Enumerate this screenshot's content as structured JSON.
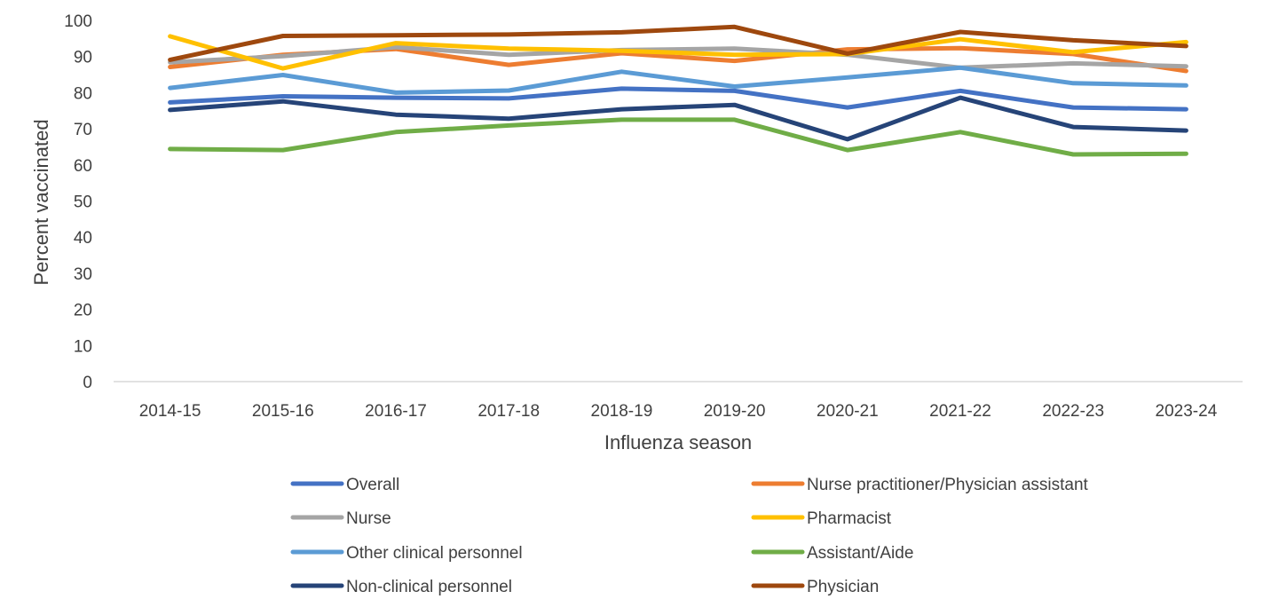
{
  "chart_data": {
    "type": "line",
    "title": "",
    "xlabel": "Influenza season",
    "ylabel": "Percent vaccinated",
    "ylim": [
      0,
      100
    ],
    "yticks": [
      0,
      10,
      20,
      30,
      40,
      50,
      60,
      70,
      80,
      90,
      100
    ],
    "categories": [
      "2014-15",
      "2015-16",
      "2016-17",
      "2017-18",
      "2018-19",
      "2019-20",
      "2020-21",
      "2021-22",
      "2022-23",
      "2023-24"
    ],
    "grid": false,
    "legend_position": "bottom",
    "series": [
      {
        "name": "Overall",
        "color": "#4472C4",
        "values": [
          77.3,
          79.0,
          78.6,
          78.4,
          81.1,
          80.5,
          75.9,
          80.5,
          75.9,
          75.4
        ]
      },
      {
        "name": "Nurse practitioner/Physician assistant",
        "color": "#ED7D31",
        "values": [
          87.1,
          90.5,
          92.1,
          87.7,
          90.9,
          88.8,
          92.0,
          92.3,
          90.7,
          86.0
        ]
      },
      {
        "name": "Nurse",
        "color": "#A5A5A5",
        "values": [
          88.4,
          90.1,
          92.6,
          90.5,
          91.8,
          92.2,
          90.5,
          86.9,
          88.1,
          87.3
        ]
      },
      {
        "name": "Pharmacist",
        "color": "#FFC000",
        "values": [
          95.6,
          86.7,
          93.7,
          92.2,
          91.6,
          90.5,
          90.7,
          94.8,
          91.2,
          94.0
        ]
      },
      {
        "name": "Other clinical personnel",
        "color": "#5B9BD5",
        "values": [
          81.3,
          84.9,
          80.0,
          80.6,
          85.8,
          81.7,
          84.2,
          86.9,
          82.6,
          82.0
        ]
      },
      {
        "name": "Assistant/Aide",
        "color": "#70AD47",
        "values": [
          64.4,
          64.1,
          69.1,
          70.9,
          72.5,
          72.5,
          64.1,
          69.1,
          62.9,
          63.1
        ]
      },
      {
        "name": "Non-clinical personnel",
        "color": "#264478",
        "values": [
          75.2,
          77.6,
          73.9,
          72.8,
          75.4,
          76.6,
          67.1,
          78.6,
          70.5,
          69.5
        ]
      },
      {
        "name": "Physician",
        "color": "#9E480E",
        "values": [
          89.1,
          95.7,
          95.9,
          96.1,
          96.7,
          98.2,
          90.8,
          96.8,
          94.5,
          92.9
        ]
      }
    ]
  }
}
